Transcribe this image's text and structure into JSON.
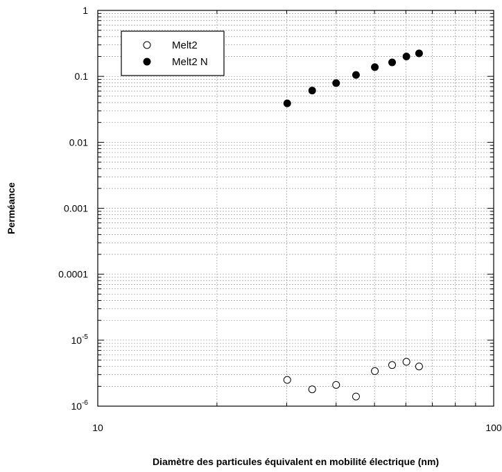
{
  "chart_data": {
    "type": "scatter",
    "xscale": "log",
    "yscale": "log",
    "xlim": [
      10,
      100
    ],
    "ylim": [
      1e-06,
      1
    ],
    "grid": true,
    "grid_style": "dashed",
    "xlabel": "Diamètre des particules équivalent en mobilité électrique (nm)",
    "ylabel": "Perméance",
    "x_tick_labels": [
      {
        "value": 10,
        "label": "10"
      },
      {
        "value": 100,
        "label": "100"
      }
    ],
    "y_tick_labels": [
      {
        "value": 1,
        "label": "1"
      },
      {
        "value": 0.1,
        "label": "0.1"
      },
      {
        "value": 0.01,
        "label": "0.01"
      },
      {
        "value": 0.001,
        "label": "0.001"
      },
      {
        "value": 0.0001,
        "label": "0.0001"
      },
      {
        "value": 1e-05,
        "base": "10",
        "exp": "-5"
      },
      {
        "value": 1e-06,
        "base": "10",
        "exp": "-6"
      }
    ],
    "legend_position": "top-left",
    "series": [
      {
        "name": "Melt2",
        "marker": "open-circle",
        "points": [
          {
            "x": 30.1,
            "y": 2.5e-06
          },
          {
            "x": 34.8,
            "y": 1.8e-06
          },
          {
            "x": 40.0,
            "y": 2.1e-06
          },
          {
            "x": 44.9,
            "y": 1.4e-06
          },
          {
            "x": 50.1,
            "y": 3.4e-06
          },
          {
            "x": 55.4,
            "y": 4.2e-06
          },
          {
            "x": 60.2,
            "y": 4.7e-06
          },
          {
            "x": 64.8,
            "y": 4e-06
          }
        ]
      },
      {
        "name": "Melt2 N",
        "marker": "filled-circle",
        "points": [
          {
            "x": 30.1,
            "y": 0.039
          },
          {
            "x": 34.8,
            "y": 0.061
          },
          {
            "x": 40.0,
            "y": 0.079
          },
          {
            "x": 44.9,
            "y": 0.105
          },
          {
            "x": 50.1,
            "y": 0.138
          },
          {
            "x": 55.4,
            "y": 0.163
          },
          {
            "x": 60.2,
            "y": 0.2
          },
          {
            "x": 64.8,
            "y": 0.223
          }
        ]
      }
    ]
  }
}
